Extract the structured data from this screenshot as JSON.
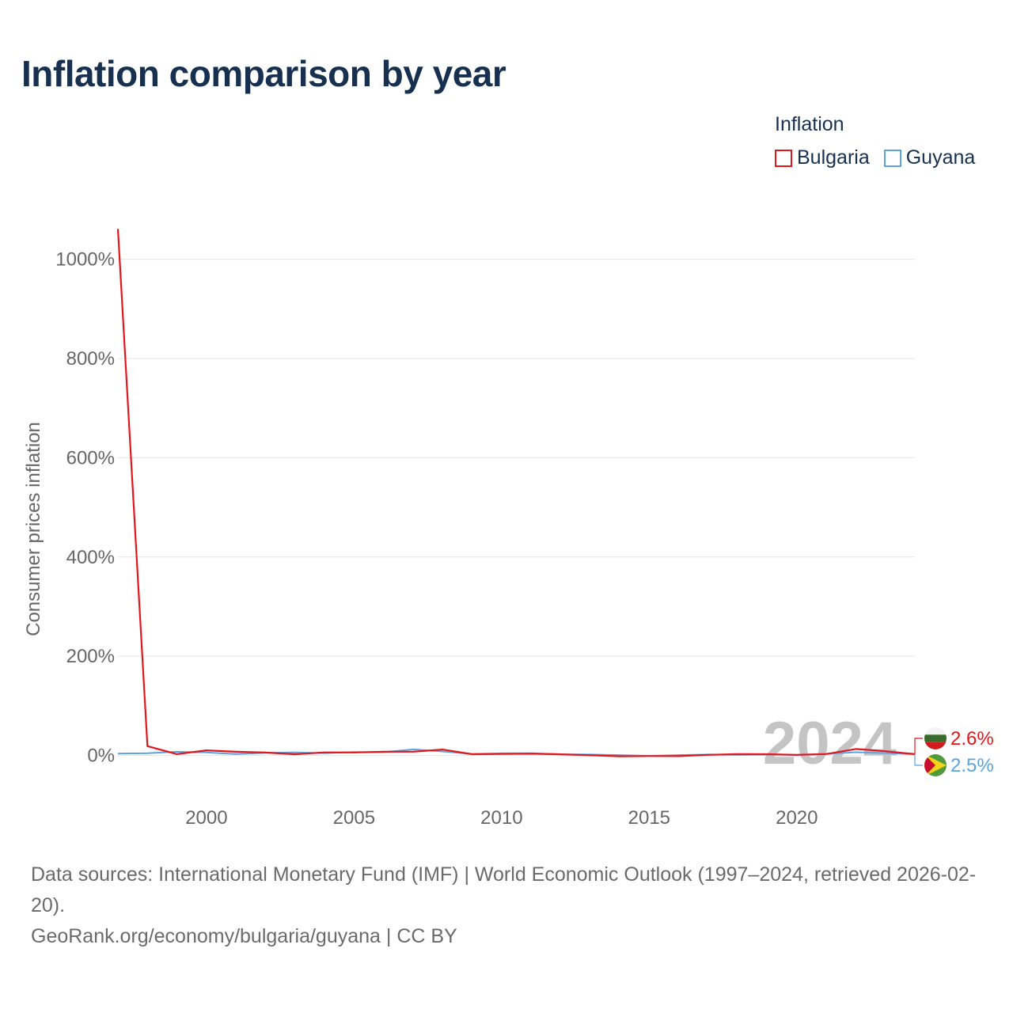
{
  "title": "Inflation comparison by year",
  "legend": {
    "title": "Inflation",
    "items": [
      {
        "label": "Bulgaria",
        "color": "#e3161c"
      },
      {
        "label": "Guyana",
        "color": "#5ba3e0"
      }
    ]
  },
  "chart_data": {
    "type": "line",
    "title": "Inflation comparison by year",
    "xlabel": "",
    "ylabel": "Consumer prices inflation",
    "xlim": [
      1997,
      2024
    ],
    "ylim": [
      -90,
      1060
    ],
    "x_ticks": [
      2000,
      2005,
      2010,
      2015,
      2020
    ],
    "y_ticks": [
      0,
      200,
      400,
      600,
      800,
      1000
    ],
    "y_tick_labels": [
      "0%",
      "200%",
      "400%",
      "600%",
      "800%",
      "1000%"
    ],
    "grid": true,
    "legend_position": "top-right",
    "x": [
      1997,
      1998,
      1999,
      2000,
      2001,
      2002,
      2003,
      2004,
      2005,
      2006,
      2007,
      2008,
      2009,
      2010,
      2011,
      2012,
      2013,
      2014,
      2015,
      2016,
      2017,
      2018,
      2019,
      2020,
      2021,
      2022,
      2023,
      2024
    ],
    "series": [
      {
        "name": "Bulgaria",
        "color": "#e3161c",
        "values": [
          1061.2,
          18.7,
          2.6,
          10.3,
          7.4,
          5.8,
          2.3,
          6.1,
          6.0,
          7.4,
          7.6,
          12.0,
          2.5,
          3.0,
          3.4,
          2.4,
          0.4,
          -1.6,
          -1.1,
          -1.3,
          1.2,
          2.6,
          2.5,
          1.2,
          2.8,
          13.0,
          8.6,
          2.6
        ]
      },
      {
        "name": "Guyana",
        "color": "#5ba3e0",
        "values": [
          3.6,
          4.6,
          7.5,
          6.1,
          2.6,
          5.4,
          6.0,
          4.7,
          6.9,
          6.7,
          12.2,
          8.1,
          3.0,
          4.3,
          4.4,
          2.4,
          1.9,
          0.7,
          -0.9,
          0.8,
          1.9,
          1.3,
          2.1,
          1.0,
          3.3,
          6.5,
          4.8,
          2.5
        ]
      }
    ],
    "annotations": {
      "year_label": "2024",
      "end_labels": [
        {
          "series": "Bulgaria",
          "text": "2.6%",
          "flag": "bulgaria-flag-icon"
        },
        {
          "series": "Guyana",
          "text": "2.5%",
          "flag": "guyana-flag-icon"
        }
      ]
    }
  },
  "footer": {
    "sources": "Data sources: International Monetary Fund (IMF) | World Economic Outlook (1997–2024, retrieved 2026-02-20).",
    "credit": "GeoRank.org/economy/bulgaria/guyana | CC BY"
  }
}
